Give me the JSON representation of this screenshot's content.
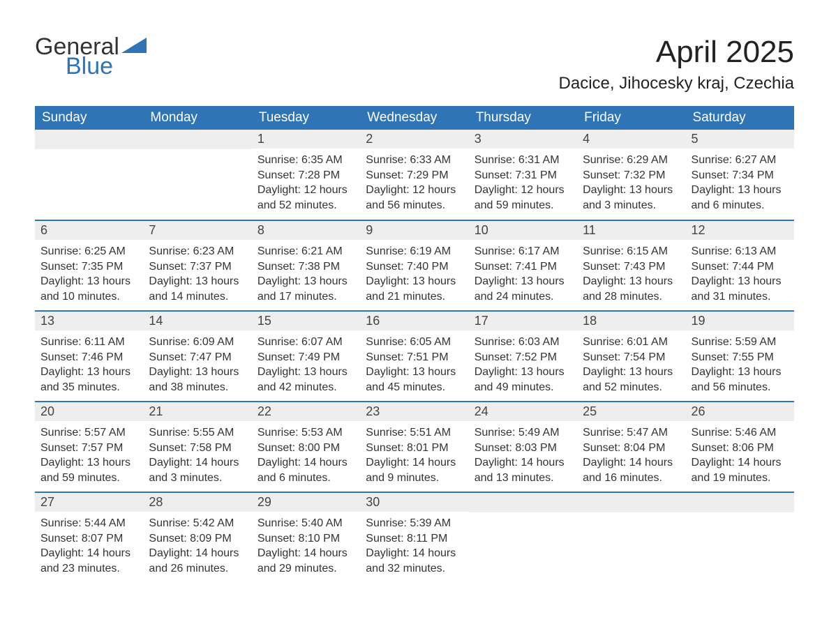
{
  "logo": {
    "text_general": "General",
    "text_blue": "Blue",
    "shape_color": "#2f74b5",
    "general_color": "#333333",
    "blue_color": "#2f74b5"
  },
  "title": "April 2025",
  "location": "Dacice, Jihocesky kraj, Czechia",
  "colors": {
    "header_bg": "#2f74b5",
    "header_text": "#ffffff",
    "daynum_bg": "#eeeeee",
    "daynum_text": "#444444",
    "body_text": "#333333",
    "row_border": "#2f74b5",
    "page_bg": "#ffffff"
  },
  "typography": {
    "title_fontsize": 44,
    "location_fontsize": 24,
    "header_fontsize": 19,
    "daynum_fontsize": 18,
    "content_fontsize": 16
  },
  "weekday_headers": [
    "Sunday",
    "Monday",
    "Tuesday",
    "Wednesday",
    "Thursday",
    "Friday",
    "Saturday"
  ],
  "weeks": [
    [
      null,
      null,
      {
        "day": "1",
        "sunrise": "Sunrise: 6:35 AM",
        "sunset": "Sunset: 7:28 PM",
        "daylight1": "Daylight: 12 hours",
        "daylight2": "and 52 minutes."
      },
      {
        "day": "2",
        "sunrise": "Sunrise: 6:33 AM",
        "sunset": "Sunset: 7:29 PM",
        "daylight1": "Daylight: 12 hours",
        "daylight2": "and 56 minutes."
      },
      {
        "day": "3",
        "sunrise": "Sunrise: 6:31 AM",
        "sunset": "Sunset: 7:31 PM",
        "daylight1": "Daylight: 12 hours",
        "daylight2": "and 59 minutes."
      },
      {
        "day": "4",
        "sunrise": "Sunrise: 6:29 AM",
        "sunset": "Sunset: 7:32 PM",
        "daylight1": "Daylight: 13 hours",
        "daylight2": "and 3 minutes."
      },
      {
        "day": "5",
        "sunrise": "Sunrise: 6:27 AM",
        "sunset": "Sunset: 7:34 PM",
        "daylight1": "Daylight: 13 hours",
        "daylight2": "and 6 minutes."
      }
    ],
    [
      {
        "day": "6",
        "sunrise": "Sunrise: 6:25 AM",
        "sunset": "Sunset: 7:35 PM",
        "daylight1": "Daylight: 13 hours",
        "daylight2": "and 10 minutes."
      },
      {
        "day": "7",
        "sunrise": "Sunrise: 6:23 AM",
        "sunset": "Sunset: 7:37 PM",
        "daylight1": "Daylight: 13 hours",
        "daylight2": "and 14 minutes."
      },
      {
        "day": "8",
        "sunrise": "Sunrise: 6:21 AM",
        "sunset": "Sunset: 7:38 PM",
        "daylight1": "Daylight: 13 hours",
        "daylight2": "and 17 minutes."
      },
      {
        "day": "9",
        "sunrise": "Sunrise: 6:19 AM",
        "sunset": "Sunset: 7:40 PM",
        "daylight1": "Daylight: 13 hours",
        "daylight2": "and 21 minutes."
      },
      {
        "day": "10",
        "sunrise": "Sunrise: 6:17 AM",
        "sunset": "Sunset: 7:41 PM",
        "daylight1": "Daylight: 13 hours",
        "daylight2": "and 24 minutes."
      },
      {
        "day": "11",
        "sunrise": "Sunrise: 6:15 AM",
        "sunset": "Sunset: 7:43 PM",
        "daylight1": "Daylight: 13 hours",
        "daylight2": "and 28 minutes."
      },
      {
        "day": "12",
        "sunrise": "Sunrise: 6:13 AM",
        "sunset": "Sunset: 7:44 PM",
        "daylight1": "Daylight: 13 hours",
        "daylight2": "and 31 minutes."
      }
    ],
    [
      {
        "day": "13",
        "sunrise": "Sunrise: 6:11 AM",
        "sunset": "Sunset: 7:46 PM",
        "daylight1": "Daylight: 13 hours",
        "daylight2": "and 35 minutes."
      },
      {
        "day": "14",
        "sunrise": "Sunrise: 6:09 AM",
        "sunset": "Sunset: 7:47 PM",
        "daylight1": "Daylight: 13 hours",
        "daylight2": "and 38 minutes."
      },
      {
        "day": "15",
        "sunrise": "Sunrise: 6:07 AM",
        "sunset": "Sunset: 7:49 PM",
        "daylight1": "Daylight: 13 hours",
        "daylight2": "and 42 minutes."
      },
      {
        "day": "16",
        "sunrise": "Sunrise: 6:05 AM",
        "sunset": "Sunset: 7:51 PM",
        "daylight1": "Daylight: 13 hours",
        "daylight2": "and 45 minutes."
      },
      {
        "day": "17",
        "sunrise": "Sunrise: 6:03 AM",
        "sunset": "Sunset: 7:52 PM",
        "daylight1": "Daylight: 13 hours",
        "daylight2": "and 49 minutes."
      },
      {
        "day": "18",
        "sunrise": "Sunrise: 6:01 AM",
        "sunset": "Sunset: 7:54 PM",
        "daylight1": "Daylight: 13 hours",
        "daylight2": "and 52 minutes."
      },
      {
        "day": "19",
        "sunrise": "Sunrise: 5:59 AM",
        "sunset": "Sunset: 7:55 PM",
        "daylight1": "Daylight: 13 hours",
        "daylight2": "and 56 minutes."
      }
    ],
    [
      {
        "day": "20",
        "sunrise": "Sunrise: 5:57 AM",
        "sunset": "Sunset: 7:57 PM",
        "daylight1": "Daylight: 13 hours",
        "daylight2": "and 59 minutes."
      },
      {
        "day": "21",
        "sunrise": "Sunrise: 5:55 AM",
        "sunset": "Sunset: 7:58 PM",
        "daylight1": "Daylight: 14 hours",
        "daylight2": "and 3 minutes."
      },
      {
        "day": "22",
        "sunrise": "Sunrise: 5:53 AM",
        "sunset": "Sunset: 8:00 PM",
        "daylight1": "Daylight: 14 hours",
        "daylight2": "and 6 minutes."
      },
      {
        "day": "23",
        "sunrise": "Sunrise: 5:51 AM",
        "sunset": "Sunset: 8:01 PM",
        "daylight1": "Daylight: 14 hours",
        "daylight2": "and 9 minutes."
      },
      {
        "day": "24",
        "sunrise": "Sunrise: 5:49 AM",
        "sunset": "Sunset: 8:03 PM",
        "daylight1": "Daylight: 14 hours",
        "daylight2": "and 13 minutes."
      },
      {
        "day": "25",
        "sunrise": "Sunrise: 5:47 AM",
        "sunset": "Sunset: 8:04 PM",
        "daylight1": "Daylight: 14 hours",
        "daylight2": "and 16 minutes."
      },
      {
        "day": "26",
        "sunrise": "Sunrise: 5:46 AM",
        "sunset": "Sunset: 8:06 PM",
        "daylight1": "Daylight: 14 hours",
        "daylight2": "and 19 minutes."
      }
    ],
    [
      {
        "day": "27",
        "sunrise": "Sunrise: 5:44 AM",
        "sunset": "Sunset: 8:07 PM",
        "daylight1": "Daylight: 14 hours",
        "daylight2": "and 23 minutes."
      },
      {
        "day": "28",
        "sunrise": "Sunrise: 5:42 AM",
        "sunset": "Sunset: 8:09 PM",
        "daylight1": "Daylight: 14 hours",
        "daylight2": "and 26 minutes."
      },
      {
        "day": "29",
        "sunrise": "Sunrise: 5:40 AM",
        "sunset": "Sunset: 8:10 PM",
        "daylight1": "Daylight: 14 hours",
        "daylight2": "and 29 minutes."
      },
      {
        "day": "30",
        "sunrise": "Sunrise: 5:39 AM",
        "sunset": "Sunset: 8:11 PM",
        "daylight1": "Daylight: 14 hours",
        "daylight2": "and 32 minutes."
      },
      null,
      null,
      null
    ]
  ]
}
